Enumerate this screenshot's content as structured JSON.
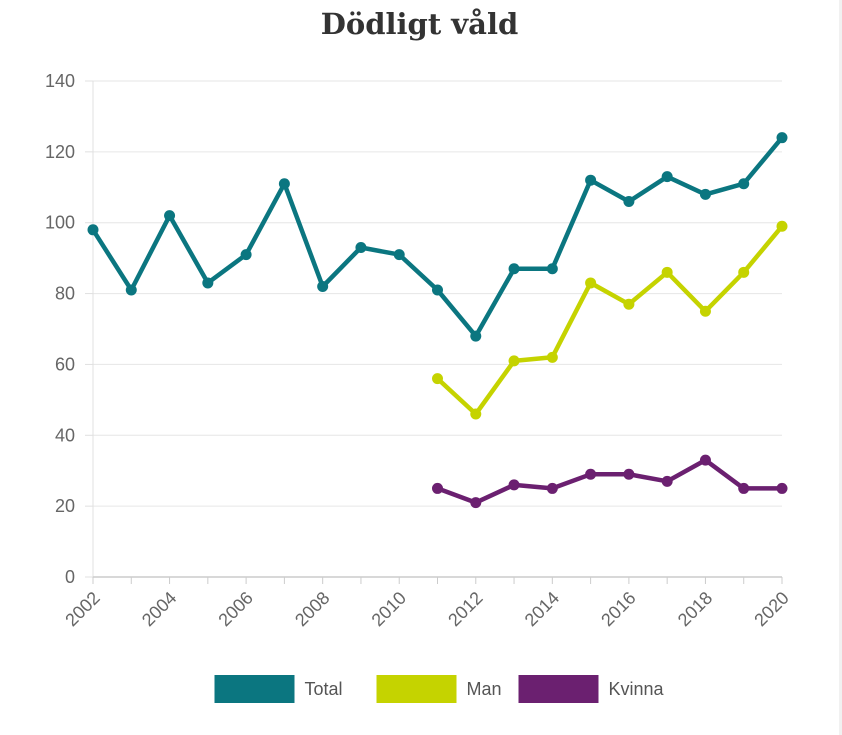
{
  "chart_data": {
    "type": "line",
    "title": "Dödligt våld",
    "xlabel": "",
    "ylabel": "",
    "x": [
      2002,
      2003,
      2004,
      2005,
      2006,
      2007,
      2008,
      2009,
      2010,
      2011,
      2012,
      2013,
      2014,
      2015,
      2016,
      2017,
      2018,
      2019,
      2020
    ],
    "x_tick_labels": [
      "2002",
      "2004",
      "2006",
      "2008",
      "2010",
      "2012",
      "2014",
      "2016",
      "2018",
      "2020"
    ],
    "y_tick_labels": [
      "0",
      "20",
      "40",
      "60",
      "80",
      "100",
      "120",
      "140"
    ],
    "ylim": [
      0,
      140
    ],
    "grid": true,
    "legend_position": "bottom",
    "series": [
      {
        "name": "Total",
        "color": "#0b7680",
        "values": [
          98,
          81,
          102,
          83,
          91,
          111,
          82,
          93,
          91,
          81,
          68,
          87,
          87,
          112,
          106,
          113,
          108,
          111,
          124
        ]
      },
      {
        "name": "Man",
        "color": "#c5d300",
        "values": [
          null,
          null,
          null,
          null,
          null,
          null,
          null,
          null,
          null,
          56,
          46,
          61,
          62,
          83,
          77,
          86,
          75,
          86,
          99
        ]
      },
      {
        "name": "Kvinna",
        "color": "#6b2070",
        "values": [
          null,
          null,
          null,
          null,
          null,
          null,
          null,
          null,
          null,
          25,
          21,
          26,
          25,
          29,
          29,
          27,
          33,
          25,
          25
        ]
      }
    ]
  }
}
